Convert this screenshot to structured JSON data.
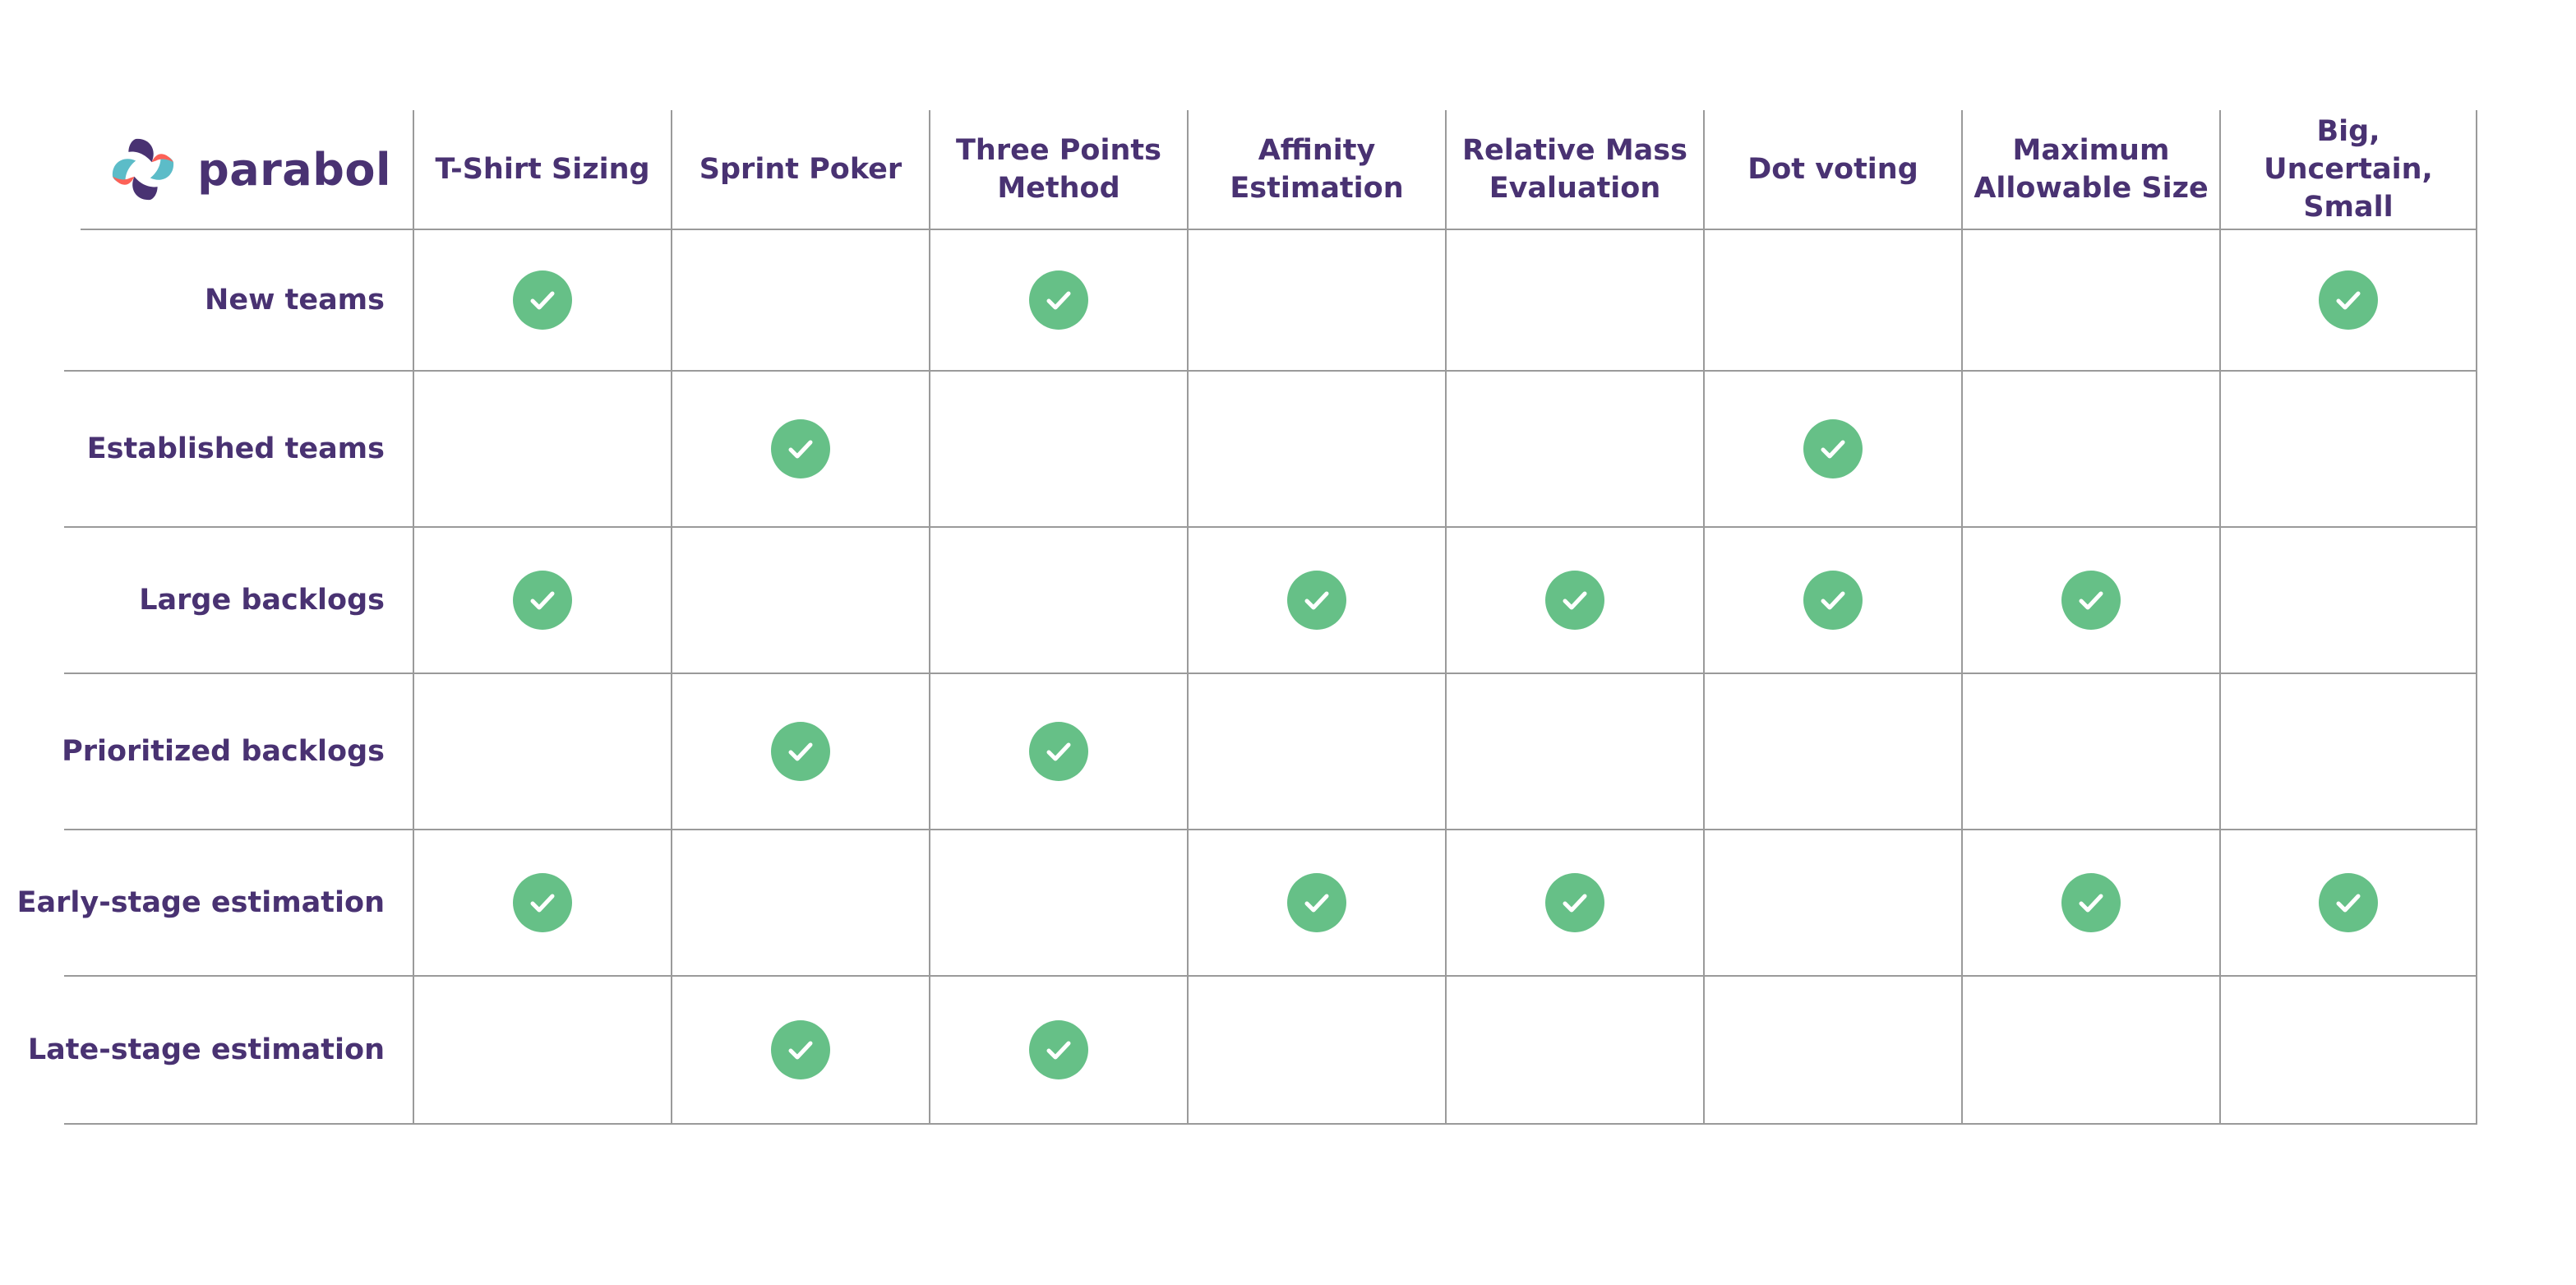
{
  "brand": {
    "name": "parabol",
    "colors": {
      "purple": "#493272",
      "coral": "#fd6157",
      "teal": "#5cbcc8",
      "check_green": "#66c087",
      "grid": "#9a9a9a"
    }
  },
  "columns": [
    {
      "id": "tshirt",
      "lines": [
        "T-Shirt Sizing"
      ]
    },
    {
      "id": "poker",
      "lines": [
        "Sprint Poker"
      ]
    },
    {
      "id": "threepoints",
      "lines": [
        "Three Points",
        "Method"
      ]
    },
    {
      "id": "affinity",
      "lines": [
        "Affinity",
        "Estimation"
      ]
    },
    {
      "id": "relativemass",
      "lines": [
        "Relative Mass",
        "Evaluation"
      ]
    },
    {
      "id": "dotvoting",
      "lines": [
        "Dot voting"
      ]
    },
    {
      "id": "maxsize",
      "lines": [
        "Maximum",
        "Allowable Size"
      ]
    },
    {
      "id": "bus",
      "lines": [
        "Big, Uncertain,",
        "Small"
      ]
    }
  ],
  "rows": [
    {
      "label": "New teams",
      "checks": [
        true,
        false,
        true,
        false,
        false,
        false,
        false,
        true
      ]
    },
    {
      "label": "Established teams",
      "checks": [
        false,
        true,
        false,
        false,
        false,
        true,
        false,
        false
      ]
    },
    {
      "label": "Large backlogs",
      "checks": [
        true,
        false,
        false,
        true,
        true,
        true,
        true,
        false
      ]
    },
    {
      "label": "Prioritized backlogs",
      "checks": [
        false,
        true,
        true,
        false,
        false,
        false,
        false,
        false
      ]
    },
    {
      "label": "Early-stage estimation",
      "checks": [
        true,
        false,
        false,
        true,
        true,
        false,
        true,
        true
      ]
    },
    {
      "label": "Late-stage estimation",
      "checks": [
        false,
        true,
        true,
        false,
        false,
        false,
        false,
        false
      ]
    }
  ],
  "icons": {
    "check": "check-circle-icon",
    "logo": "parabol-logo-icon"
  }
}
